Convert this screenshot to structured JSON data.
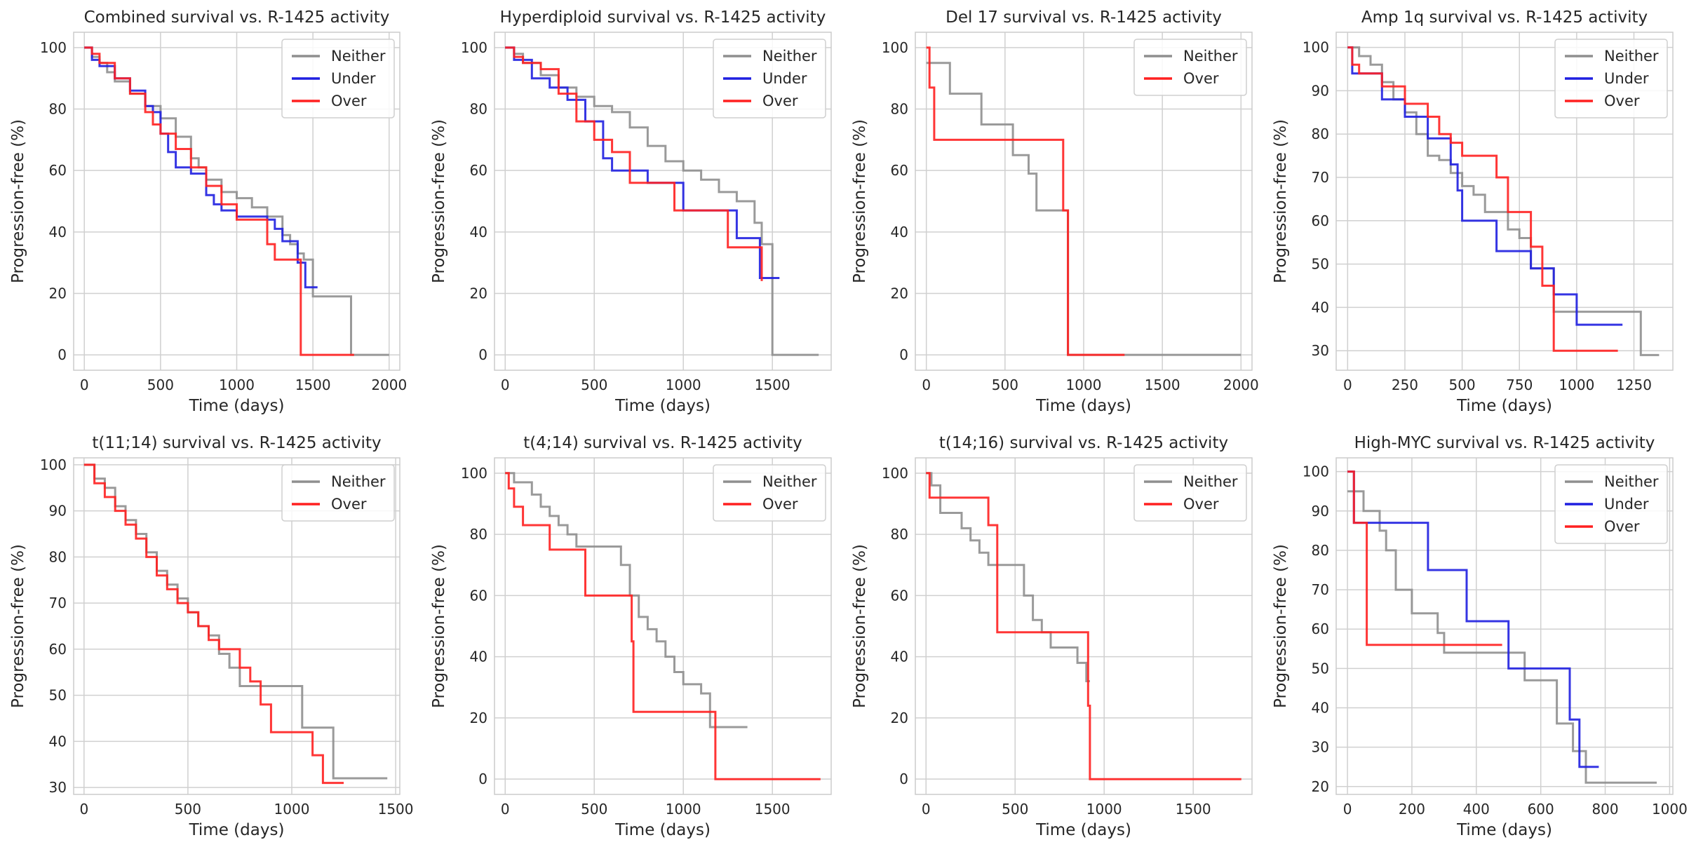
{
  "chart_data": [
    {
      "type": "line",
      "step": true,
      "title": "Combined survival vs. R-1425 activity",
      "xlabel": "Time (days)",
      "ylabel": "Progression-free (%)",
      "xlim": [
        -70,
        2070
      ],
      "ylim": [
        -5,
        105
      ],
      "xticks": [
        0,
        500,
        1000,
        1500,
        2000
      ],
      "yticks": [
        0,
        20,
        40,
        60,
        80,
        100
      ],
      "legend": "top-right",
      "series": [
        {
          "name": "Neither",
          "color": "#8f8f8f",
          "x": [
            0,
            50,
            100,
            150,
            200,
            300,
            400,
            500,
            600,
            700,
            750,
            800,
            900,
            1000,
            1100,
            1200,
            1300,
            1350,
            1400,
            1440,
            1500,
            1750,
            2000
          ],
          "y": [
            100,
            97,
            95,
            92,
            89,
            85,
            81,
            77,
            71,
            64,
            61,
            57,
            53,
            51,
            48,
            45,
            39,
            36,
            33,
            31,
            19,
            0,
            0
          ]
        },
        {
          "name": "Under",
          "color": "#1f1fe0",
          "x": [
            0,
            50,
            100,
            200,
            300,
            400,
            450,
            500,
            550,
            600,
            700,
            800,
            850,
            900,
            1000,
            1100,
            1200,
            1250,
            1300,
            1400,
            1450,
            1530
          ],
          "y": [
            100,
            96,
            94,
            90,
            86,
            81,
            79,
            72,
            66,
            61,
            59,
            52,
            49,
            47,
            45,
            45,
            44,
            41,
            37,
            30,
            22,
            22
          ]
        },
        {
          "name": "Over",
          "color": "#ff2020",
          "x": [
            0,
            50,
            100,
            200,
            300,
            400,
            450,
            500,
            600,
            700,
            800,
            900,
            1000,
            1100,
            1200,
            1250,
            1300,
            1400,
            1420,
            1770
          ],
          "y": [
            100,
            98,
            95,
            90,
            85,
            79,
            75,
            72,
            67,
            61,
            55,
            49,
            44,
            44,
            36,
            31,
            31,
            31,
            0,
            0
          ]
        }
      ]
    },
    {
      "type": "line",
      "step": true,
      "title": "Hyperdiploid survival vs. R-1425 activity",
      "xlabel": "Time (days)",
      "ylabel": "Progression-free (%)",
      "xlim": [
        -60,
        1830
      ],
      "ylim": [
        -5,
        105
      ],
      "xticks": [
        0,
        500,
        1000,
        1500
      ],
      "yticks": [
        0,
        20,
        40,
        60,
        80,
        100
      ],
      "legend": "top-right",
      "series": [
        {
          "name": "Neither",
          "color": "#8f8f8f",
          "x": [
            0,
            50,
            100,
            200,
            300,
            400,
            500,
            600,
            700,
            800,
            900,
            1000,
            1100,
            1200,
            1300,
            1400,
            1440,
            1500,
            1760
          ],
          "y": [
            100,
            98,
            95,
            91,
            87,
            84,
            81,
            79,
            74,
            68,
            63,
            60,
            57,
            53,
            50,
            43,
            36,
            0,
            0
          ]
        },
        {
          "name": "Under",
          "color": "#1f1fe0",
          "x": [
            0,
            50,
            150,
            250,
            350,
            450,
            550,
            600,
            800,
            1000,
            1300,
            1400,
            1430,
            1540
          ],
          "y": [
            100,
            96,
            90,
            87,
            83,
            76,
            64,
            60,
            56,
            47,
            38,
            38,
            25,
            25
          ]
        },
        {
          "name": "Over",
          "color": "#ff2020",
          "x": [
            0,
            50,
            100,
            200,
            300,
            400,
            500,
            600,
            700,
            800,
            950,
            1250,
            1300,
            1420,
            1440
          ],
          "y": [
            100,
            97,
            95,
            93,
            85,
            76,
            70,
            66,
            56,
            56,
            47,
            35,
            35,
            35,
            24
          ]
        }
      ]
    },
    {
      "type": "line",
      "step": true,
      "title": "Del 17 survival vs. R-1425 activity",
      "xlabel": "Time (days)",
      "ylabel": "Progression-free (%)",
      "xlim": [
        -70,
        2070
      ],
      "ylim": [
        -5,
        105
      ],
      "xticks": [
        0,
        500,
        1000,
        1500,
        2000
      ],
      "yticks": [
        0,
        20,
        40,
        60,
        80,
        100
      ],
      "legend": "top-right",
      "series": [
        {
          "name": "Neither",
          "color": "#8f8f8f",
          "x": [
            0,
            150,
            350,
            550,
            650,
            700,
            750,
            900,
            2000
          ],
          "y": [
            95,
            85,
            75,
            65,
            59,
            47,
            47,
            0,
            0
          ]
        },
        {
          "name": "Over",
          "color": "#ff2020",
          "x": [
            0,
            20,
            50,
            870,
            900,
            1260
          ],
          "y": [
            100,
            87,
            70,
            47,
            0,
            0
          ]
        }
      ]
    },
    {
      "type": "line",
      "step": true,
      "title": "Amp 1q survival vs. R-1425 activity",
      "xlabel": "Time (days)",
      "ylabel": "Progression-free (%)",
      "xlim": [
        -50,
        1420
      ],
      "ylim": [
        25.5,
        103.5
      ],
      "xticks": [
        0,
        250,
        500,
        750,
        1000,
        1250
      ],
      "yticks": [
        30,
        40,
        50,
        60,
        70,
        80,
        90,
        100
      ],
      "legend": "top-right",
      "series": [
        {
          "name": "Neither",
          "color": "#8f8f8f",
          "x": [
            0,
            50,
            100,
            150,
            200,
            250,
            300,
            350,
            400,
            450,
            500,
            550,
            600,
            650,
            700,
            750,
            800,
            900,
            1000,
            1250,
            1280,
            1360
          ],
          "y": [
            100,
            98,
            96,
            92,
            88,
            85,
            80,
            75,
            74,
            71,
            68,
            66,
            62,
            62,
            58,
            56,
            49,
            39,
            39,
            39,
            29,
            29
          ]
        },
        {
          "name": "Under",
          "color": "#1f1fe0",
          "x": [
            0,
            20,
            50,
            150,
            250,
            350,
            450,
            480,
            500,
            650,
            800,
            900,
            1000,
            1200
          ],
          "y": [
            100,
            94,
            94,
            88,
            84,
            79,
            73,
            67,
            60,
            53,
            49,
            43,
            36,
            36
          ]
        },
        {
          "name": "Over",
          "color": "#ff2020",
          "x": [
            0,
            20,
            50,
            150,
            250,
            300,
            350,
            400,
            450,
            500,
            650,
            700,
            800,
            850,
            900,
            1180
          ],
          "y": [
            100,
            96,
            94,
            91,
            87,
            87,
            84,
            80,
            78,
            75,
            70,
            62,
            54,
            45,
            30,
            30
          ]
        }
      ]
    },
    {
      "type": "line",
      "step": true,
      "title": "t(11;14) survival vs. R-1425 activity",
      "xlabel": "Time (days)",
      "ylabel": "Progression-free (%)",
      "xlim": [
        -50,
        1520
      ],
      "ylim": [
        28.5,
        101.5
      ],
      "xticks": [
        0,
        500,
        1000,
        1500
      ],
      "yticks": [
        30,
        40,
        50,
        60,
        70,
        80,
        90,
        100
      ],
      "legend": "top-right",
      "series": [
        {
          "name": "Neither",
          "color": "#8f8f8f",
          "x": [
            0,
            50,
            100,
            150,
            200,
            250,
            300,
            350,
            400,
            450,
            500,
            550,
            600,
            650,
            700,
            750,
            1000,
            1050,
            1200,
            1460
          ],
          "y": [
            100,
            97,
            95,
            91,
            88,
            85,
            81,
            77,
            74,
            71,
            68,
            65,
            63,
            59,
            56,
            52,
            52,
            43,
            32,
            32
          ]
        },
        {
          "name": "Over",
          "color": "#ff2020",
          "x": [
            0,
            50,
            100,
            150,
            200,
            250,
            300,
            350,
            400,
            450,
            500,
            550,
            600,
            650,
            700,
            750,
            800,
            850,
            900,
            1000,
            1100,
            1150,
            1200,
            1250
          ],
          "y": [
            100,
            96,
            93,
            90,
            87,
            84,
            80,
            76,
            73,
            70,
            68,
            65,
            62,
            60,
            60,
            56,
            53,
            48,
            42,
            42,
            37,
            31,
            31,
            31
          ]
        }
      ]
    },
    {
      "type": "line",
      "step": true,
      "title": "t(4;14) survival vs. R-1425 activity",
      "xlabel": "Time (days)",
      "ylabel": "Progression-free (%)",
      "xlim": [
        -60,
        1830
      ],
      "ylim": [
        -5,
        105
      ],
      "xticks": [
        0,
        500,
        1000,
        1500
      ],
      "yticks": [
        0,
        20,
        40,
        60,
        80,
        100
      ],
      "legend": "top-right",
      "series": [
        {
          "name": "Neither",
          "color": "#8f8f8f",
          "x": [
            0,
            50,
            150,
            200,
            250,
            300,
            350,
            400,
            600,
            650,
            700,
            750,
            800,
            850,
            900,
            950,
            1000,
            1100,
            1150,
            1360
          ],
          "y": [
            100,
            97,
            93,
            89,
            86,
            83,
            80,
            76,
            76,
            70,
            60,
            53,
            49,
            45,
            40,
            35,
            31,
            28,
            17,
            17
          ]
        },
        {
          "name": "Over",
          "color": "#ff2020",
          "x": [
            0,
            20,
            50,
            100,
            250,
            450,
            700,
            710,
            720,
            1180,
            1770
          ],
          "y": [
            100,
            95,
            89,
            83,
            75,
            60,
            60,
            45,
            22,
            0,
            0
          ]
        }
      ]
    },
    {
      "type": "line",
      "step": true,
      "title": "t(14;16) survival vs. R-1425 activity",
      "xlabel": "Time (days)",
      "ylabel": "Progression-free (%)",
      "xlim": [
        -60,
        1830
      ],
      "ylim": [
        -5,
        105
      ],
      "xticks": [
        0,
        500,
        1000,
        1500
      ],
      "yticks": [
        0,
        20,
        40,
        60,
        80,
        100
      ],
      "legend": "top-right",
      "series": [
        {
          "name": "Neither",
          "color": "#8f8f8f",
          "x": [
            0,
            30,
            80,
            200,
            250,
            300,
            350,
            400,
            500,
            550,
            600,
            650,
            700,
            850,
            900,
            920
          ],
          "y": [
            100,
            96,
            87,
            82,
            78,
            74,
            70,
            70,
            70,
            60,
            52,
            48,
            43,
            38,
            32,
            32
          ]
        },
        {
          "name": "Over",
          "color": "#ff2020",
          "x": [
            0,
            20,
            250,
            350,
            400,
            900,
            910,
            920,
            1770
          ],
          "y": [
            100,
            92,
            92,
            83,
            48,
            48,
            24,
            0,
            0
          ]
        }
      ]
    },
    {
      "type": "line",
      "step": true,
      "title": "High-MYC survival vs. R-1425 activity",
      "xlabel": "Time (days)",
      "ylabel": "Progression-free (%)",
      "xlim": [
        -35,
        1010
      ],
      "ylim": [
        18,
        103.5
      ],
      "xticks": [
        0,
        200,
        400,
        600,
        800,
        1000
      ],
      "yticks": [
        20,
        30,
        40,
        50,
        60,
        70,
        80,
        90,
        100
      ],
      "legend": "top-right",
      "series": [
        {
          "name": "Neither",
          "color": "#8f8f8f",
          "x": [
            0,
            50,
            100,
            120,
            150,
            200,
            280,
            300,
            500,
            550,
            650,
            700,
            740,
            960
          ],
          "y": [
            95,
            90,
            85,
            80,
            70,
            64,
            59,
            54,
            54,
            47,
            36,
            29,
            21,
            21
          ]
        },
        {
          "name": "Under",
          "color": "#1f1fe0",
          "x": [
            0,
            20,
            250,
            370,
            500,
            690,
            720,
            740,
            780
          ],
          "y": [
            100,
            87,
            75,
            62,
            50,
            37,
            25,
            25,
            25
          ]
        },
        {
          "name": "Over",
          "color": "#ff2020",
          "x": [
            0,
            20,
            60,
            480
          ],
          "y": [
            100,
            87,
            56,
            56
          ]
        }
      ]
    }
  ]
}
